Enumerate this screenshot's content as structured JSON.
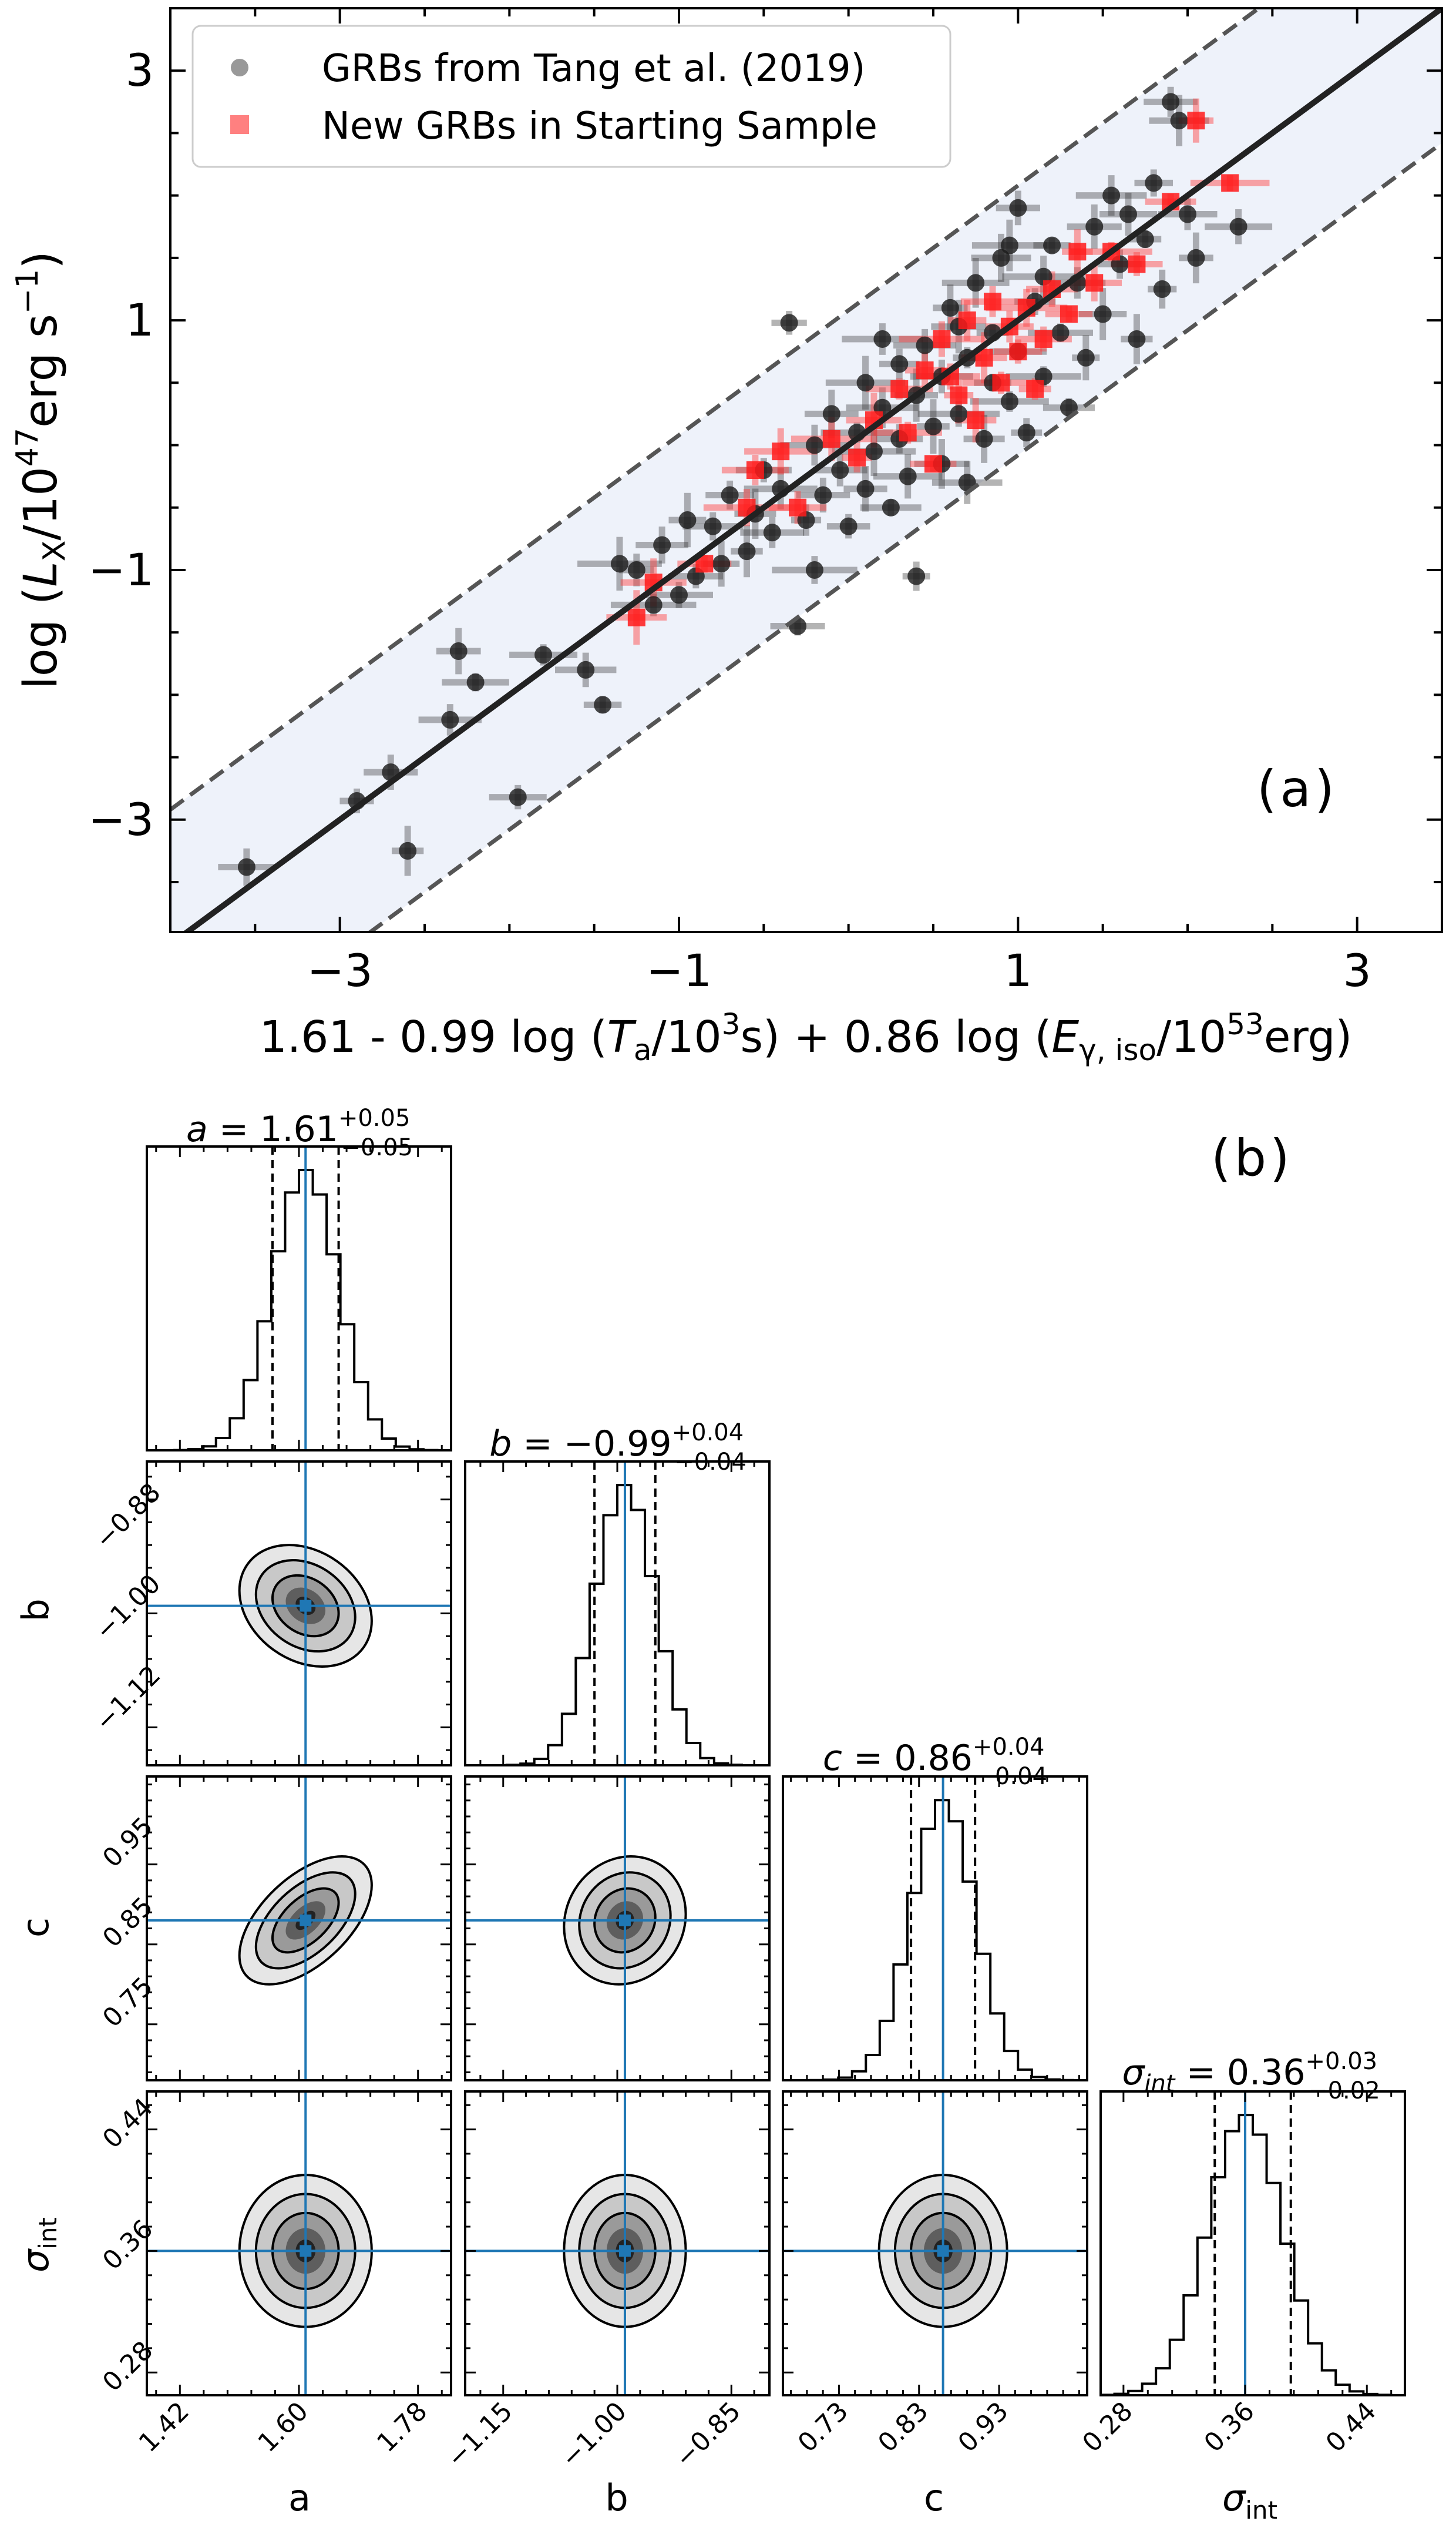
{
  "chart_data": [
    {
      "type": "scatter",
      "panel_label": "(a)",
      "xlabel": "1.61 - 0.99 log (T_a/10^3 s) + 0.86 log (E_γ,iso/10^53 erg)",
      "ylabel": "log (L_X/10^47 erg s^-1)",
      "xlim": [
        -4.0,
        3.5
      ],
      "ylim": [
        -3.9,
        3.5
      ],
      "xticks": [
        -3,
        -1,
        1,
        3
      ],
      "yticks": [
        -3,
        -1,
        1,
        3
      ],
      "xtick_labels": [
        "−3",
        "−1",
        "1",
        "3"
      ],
      "ytick_labels": [
        "−3",
        "−1",
        "1",
        "3"
      ],
      "fit_line": {
        "slope": 1.0,
        "intercept": 0.0
      },
      "band_halfwidth": 1.08,
      "legend": {
        "placement": "top-left",
        "entries": [
          "GRBs from Tang et al. (2019)",
          "New GRBs in Starting Sample"
        ]
      },
      "series": [
        {
          "name": "GRBs from Tang et al. (2019)",
          "color": "#000000",
          "points": [
            [
              -3.55,
              -3.38
            ],
            [
              -2.9,
              -2.85
            ],
            [
              -2.7,
              -2.62
            ],
            [
              -2.6,
              -3.25
            ],
            [
              -2.35,
              -2.2
            ],
            [
              -2.3,
              -1.65
            ],
            [
              -2.2,
              -1.9
            ],
            [
              -1.95,
              -2.82
            ],
            [
              -1.8,
              -1.68
            ],
            [
              -1.55,
              -1.8
            ],
            [
              -1.45,
              -2.08
            ],
            [
              -1.35,
              -0.95
            ],
            [
              -1.25,
              -1.0
            ],
            [
              -1.15,
              -1.28
            ],
            [
              -1.1,
              -0.8
            ],
            [
              -1.0,
              -1.2
            ],
            [
              -0.95,
              -0.6
            ],
            [
              -0.9,
              -1.05
            ],
            [
              -0.8,
              -0.65
            ],
            [
              -0.75,
              -0.95
            ],
            [
              -0.7,
              -0.4
            ],
            [
              -0.6,
              -0.85
            ],
            [
              -0.55,
              -0.55
            ],
            [
              -0.5,
              -0.2
            ],
            [
              -0.45,
              -0.7
            ],
            [
              -0.4,
              -0.35
            ],
            [
              -0.35,
              0.98
            ],
            [
              -0.3,
              -1.45
            ],
            [
              -0.25,
              -0.6
            ],
            [
              -0.2,
              0.0
            ],
            [
              -0.2,
              -1.0
            ],
            [
              -0.15,
              -0.4
            ],
            [
              -0.1,
              0.25
            ],
            [
              -0.05,
              -0.2
            ],
            [
              0.0,
              -0.65
            ],
            [
              0.05,
              0.1
            ],
            [
              0.1,
              -0.35
            ],
            [
              0.1,
              0.5
            ],
            [
              0.15,
              -0.05
            ],
            [
              0.2,
              0.3
            ],
            [
              0.25,
              -0.5
            ],
            [
              0.3,
              0.05
            ],
            [
              0.3,
              0.65
            ],
            [
              0.35,
              -0.25
            ],
            [
              0.4,
              0.4
            ],
            [
              0.4,
              -1.05
            ],
            [
              0.45,
              0.8
            ],
            [
              0.5,
              0.15
            ],
            [
              0.55,
              -0.15
            ],
            [
              0.55,
              0.55
            ],
            [
              0.6,
              1.1
            ],
            [
              0.65,
              0.25
            ],
            [
              0.7,
              0.7
            ],
            [
              0.7,
              -0.3
            ],
            [
              0.75,
              1.3
            ],
            [
              0.8,
              0.05
            ],
            [
              0.85,
              0.5
            ],
            [
              0.85,
              0.9
            ],
            [
              0.9,
              1.5
            ],
            [
              0.95,
              0.35
            ],
            [
              1.0,
              0.75
            ],
            [
              1.0,
              1.9
            ],
            [
              1.05,
              0.1
            ],
            [
              1.1,
              1.15
            ],
            [
              1.15,
              0.55
            ],
            [
              1.2,
              1.6
            ],
            [
              1.25,
              0.9
            ],
            [
              1.3,
              0.3
            ],
            [
              1.35,
              1.3
            ],
            [
              1.4,
              0.7
            ],
            [
              1.45,
              1.75
            ],
            [
              1.5,
              1.05
            ],
            [
              1.55,
              2.0
            ],
            [
              1.6,
              1.45
            ],
            [
              1.7,
              0.85
            ],
            [
              1.75,
              1.65
            ],
            [
              1.8,
              2.1
            ],
            [
              1.85,
              1.25
            ],
            [
              1.9,
              2.75
            ],
            [
              1.95,
              2.6
            ],
            [
              2.0,
              1.85
            ],
            [
              2.05,
              1.5
            ],
            [
              2.3,
              1.75
            ],
            [
              1.15,
              1.35
            ],
            [
              0.65,
              0.95
            ],
            [
              0.2,
              0.85
            ],
            [
              1.65,
              1.85
            ],
            [
              0.95,
              1.6
            ]
          ]
        },
        {
          "name": "New GRBs in Starting Sample",
          "color": "#ff0000",
          "points": [
            [
              -1.25,
              -1.38
            ],
            [
              -1.15,
              -1.1
            ],
            [
              -0.85,
              -0.95
            ],
            [
              -0.6,
              -0.5
            ],
            [
              -0.55,
              -0.2
            ],
            [
              -0.4,
              -0.05
            ],
            [
              -0.3,
              -0.5
            ],
            [
              -0.1,
              0.05
            ],
            [
              0.05,
              -0.1
            ],
            [
              0.15,
              0.2
            ],
            [
              0.3,
              0.45
            ],
            [
              0.35,
              0.1
            ],
            [
              0.45,
              0.6
            ],
            [
              0.5,
              -0.15
            ],
            [
              0.55,
              0.85
            ],
            [
              0.65,
              0.4
            ],
            [
              0.7,
              1.0
            ],
            [
              0.75,
              0.2
            ],
            [
              0.8,
              0.7
            ],
            [
              0.85,
              1.15
            ],
            [
              0.9,
              0.5
            ],
            [
              0.95,
              0.95
            ],
            [
              1.05,
              1.1
            ],
            [
              1.1,
              0.45
            ],
            [
              1.15,
              0.85
            ],
            [
              1.2,
              1.25
            ],
            [
              1.3,
              1.05
            ],
            [
              1.35,
              1.55
            ],
            [
              1.45,
              1.3
            ],
            [
              1.55,
              1.55
            ],
            [
              1.7,
              1.45
            ],
            [
              1.9,
              1.95
            ],
            [
              2.05,
              2.6
            ],
            [
              2.25,
              2.1
            ],
            [
              0.6,
              0.55
            ],
            [
              1.0,
              0.75
            ]
          ]
        }
      ]
    },
    {
      "type": "corner",
      "panel_label": "(b)",
      "parameters": [
        "a",
        "b",
        "c",
        "σ_int"
      ],
      "median": [
        1.61,
        -0.99,
        0.86,
        0.36
      ],
      "err_plus": [
        0.05,
        0.04,
        0.04,
        0.03
      ],
      "err_minus": [
        0.05,
        0.04,
        0.04,
        0.02
      ],
      "titles": [
        {
          "lhs": "a",
          "value": "1.61",
          "plus": "+0.05",
          "minus": "−0.05"
        },
        {
          "lhs": "b",
          "value": "−0.99",
          "plus": "+0.04",
          "minus": "−0.04"
        },
        {
          "lhs": "c",
          "value": "0.86",
          "plus": "+0.04",
          "minus": "−0.04"
        },
        {
          "lhs": "σ",
          "lhs_sub": "int",
          "value": "0.36",
          "plus": "+0.03",
          "minus": "−0.02"
        }
      ],
      "axis_labels": [
        "a",
        "b",
        "c",
        "σint"
      ],
      "ranges": [
        [
          1.37,
          1.83
        ],
        [
          -1.2,
          -0.8
        ],
        [
          0.66,
          1.04
        ],
        [
          0.265,
          0.465
        ]
      ],
      "ticks": [
        [
          1.42,
          1.6,
          1.78
        ],
        [
          -1.15,
          -1.0,
          -0.85
        ],
        [
          0.73,
          0.83,
          0.93
        ],
        [
          0.28,
          0.36,
          0.44
        ]
      ],
      "tick_labels": [
        [
          "1.42",
          "1.60",
          "1.78"
        ],
        [
          "−1.15",
          "−1.00",
          "−0.85"
        ],
        [
          "0.73",
          "0.83",
          "0.93"
        ],
        [
          "0.28",
          "0.36",
          "0.44"
        ]
      ],
      "y_ticks": [
        [
          -0.88,
          -1.0,
          -1.12
        ],
        [
          0.95,
          0.85,
          0.75
        ],
        [
          0.44,
          0.36,
          0.28
        ]
      ],
      "y_tick_labels": [
        [
          "−0.88",
          "−1.00",
          "−1.12"
        ],
        [
          "0.95",
          "0.85",
          "0.75"
        ],
        [
          "0.44",
          "0.36",
          "0.28"
        ]
      ],
      "correlations": {
        "a-c": 0.55,
        "a-b": -0.25,
        "b-c": 0.1
      },
      "marker_color": "#1f77b4"
    }
  ]
}
